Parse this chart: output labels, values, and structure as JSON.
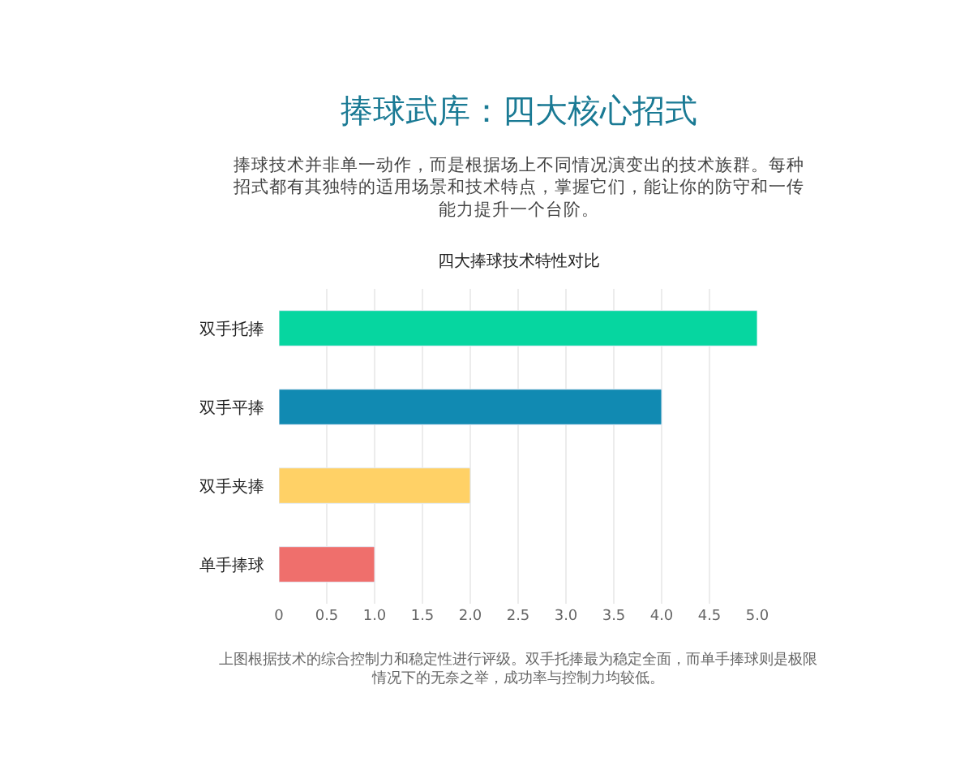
{
  "chart_data": {
    "type": "bar",
    "orientation": "horizontal",
    "title": "捧球武库：四大核心招式",
    "subtitle": "捧球技术并非单一动作，而是根据场上不同情况演变出的技术族群。每种招式都有其独特的适用场景和技术特点，掌握它们，能让你的防守和一传能力提升一个台阶。",
    "categories": [
      "双手托捧",
      "双手平捧",
      "双手夹捧",
      "单手捧球"
    ],
    "values": [
      5,
      4,
      2,
      1
    ],
    "colors": [
      "#06d6a0",
      "#118ab2",
      "#ffd166",
      "#ef6f6c"
    ],
    "xlim": [
      0,
      5
    ],
    "xticks": [
      0,
      0.5,
      {
        "value": 1,
        "label": "1.0"
      },
      1.5,
      {
        "value": 2,
        "label": "2.0"
      },
      2.5,
      {
        "value": 3,
        "label": "3.0"
      },
      3.5,
      {
        "value": 4,
        "label": "4.0"
      },
      4.5,
      {
        "value": 5,
        "label": "5.0"
      }
    ],
    "grid": "x",
    "annotations": [
      "四大捧球技术特性对比",
      "上图根据技术的综合控制力和稳定性进行评级。双手托捧最为稳定全面，而单手捧球则是极限情况下的无奈之举，成功率与控制力均较低。"
    ]
  }
}
